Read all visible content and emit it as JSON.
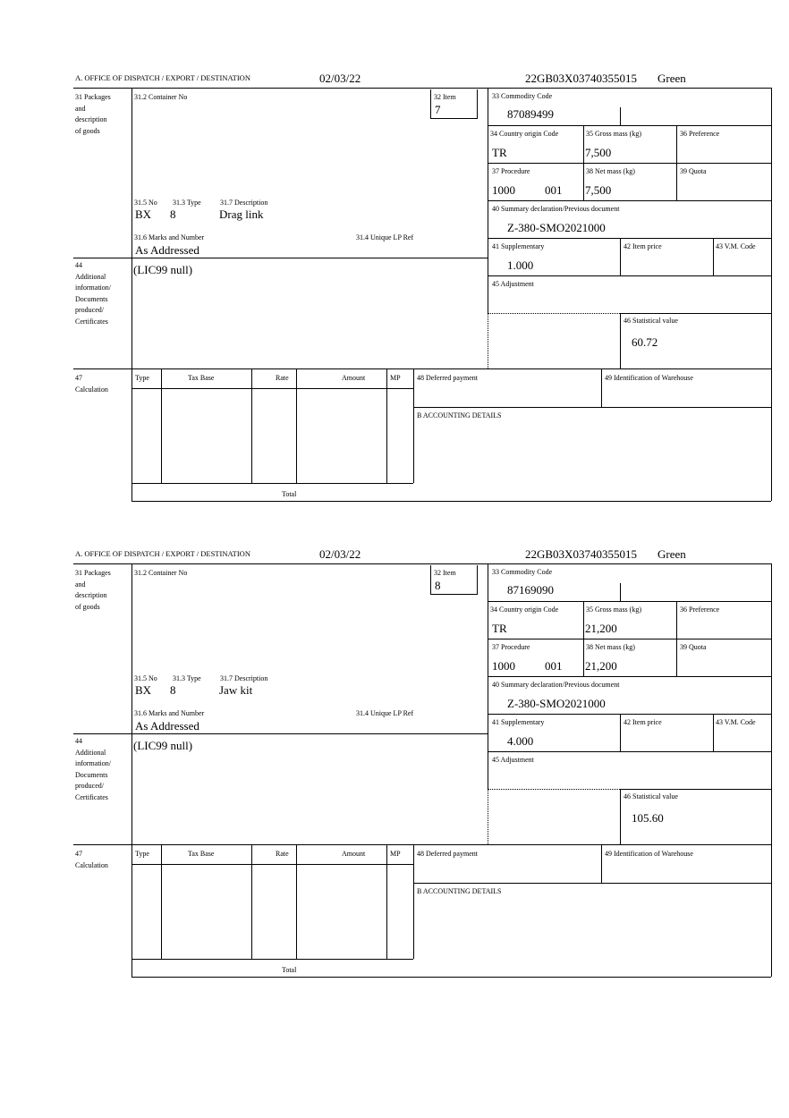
{
  "labels": {
    "office": "A.  OFFICE OF DISPATCH / EXPORT / DESTINATION",
    "box31": [
      "31 Packages",
      "and",
      "description",
      "of goods"
    ],
    "container": "31.2 Container No",
    "item": "32 Item",
    "no": "31.5 No",
    "type": "31.3 Type",
    "description": "31.7 Description",
    "marks": "31.6 Marks and Number",
    "unique_lp": "31.4 Unique LP Ref",
    "commodity": "33 Commodity Code",
    "country": "34 Country origin Code",
    "gross": "35 Gross mass (kg)",
    "preference": "36 Preference",
    "procedure": "37 Procedure",
    "net": "38 Net mass (kg)",
    "quota": "39 Quota",
    "summary": "40 Summary declaration/Previous document",
    "supplementary": "41 Supplementary",
    "item_price": "42 Item price",
    "vm_code": "43 V.M. Code",
    "box44": [
      "44",
      "Additional",
      "information/",
      "Documents",
      "produced/",
      "Certificates"
    ],
    "adjustment": "45 Adjustment",
    "stat_value": "46 Statistical value",
    "box47": [
      "47",
      "Calculation"
    ],
    "calc_headers": [
      "Type",
      "Tax Base",
      "Rate",
      "Amount",
      "MP"
    ],
    "deferred": "48 Deferred payment",
    "warehouse": "49 Identification of Warehouse",
    "accounting": "B ACCOUNTING DETAILS",
    "total": "Total"
  },
  "forms": [
    {
      "date": "02/03/22",
      "reference": "22GB03X03740355015",
      "route": "Green",
      "item": "7",
      "no": "BX",
      "type": "8",
      "description": "Drag link",
      "marks": "As Addressed",
      "commodity": "87089499",
      "country": "TR",
      "gross": "7,500",
      "procedure": "1000",
      "procedure_add": "001",
      "net": "7,500",
      "summary": "Z-380-SMO2021000",
      "supplementary": "1.000",
      "additional": "(LIC99 null)",
      "stat_value": "60.72"
    },
    {
      "date": "02/03/22",
      "reference": "22GB03X03740355015",
      "route": "Green",
      "item": "8",
      "no": "BX",
      "type": "8",
      "description": "Jaw kit",
      "marks": "As Addressed",
      "commodity": "87169090",
      "country": "TR",
      "gross": "21,200",
      "procedure": "1000",
      "procedure_add": "001",
      "net": "21,200",
      "summary": "Z-380-SMO2021000",
      "supplementary": "4.000",
      "additional": "(LIC99 null)",
      "stat_value": "105.60"
    }
  ]
}
